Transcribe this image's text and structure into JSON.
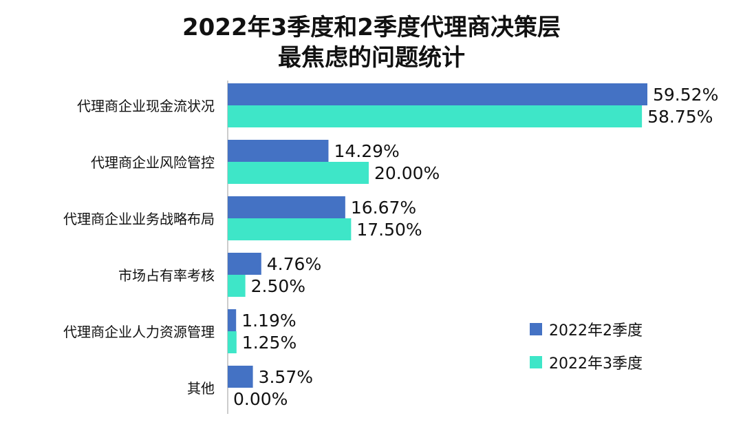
{
  "chart_data": {
    "type": "bar",
    "orientation": "horizontal",
    "title_line1": "2022年3季度和2季度代理商决策层",
    "title_line2": "最焦虑的问题统计",
    "categories": [
      "代理商企业现金流状况",
      "代理商企业风险管控",
      "代理商企业业务战略布局",
      "市场占有率考核",
      "代理商企业人力资源管理",
      "其他"
    ],
    "series": [
      {
        "name": "2022年2季度",
        "color": "#4472C4",
        "values": [
          59.52,
          14.29,
          16.67,
          4.76,
          1.19,
          3.57
        ]
      },
      {
        "name": "2022年3季度",
        "color": "#3EE6C8",
        "values": [
          58.75,
          20.0,
          17.5,
          2.5,
          1.25,
          0.0
        ]
      }
    ],
    "data_labels": [
      [
        "59.52%",
        "14.29%",
        "16.67%",
        "4.76%",
        "1.19%",
        "3.57%"
      ],
      [
        "58.75%",
        "20.00%",
        "17.50%",
        "2.50%",
        "1.25%",
        "0.00%"
      ]
    ],
    "xlim": [
      0,
      60
    ],
    "legend_position": "bottom-right",
    "grid": false
  }
}
